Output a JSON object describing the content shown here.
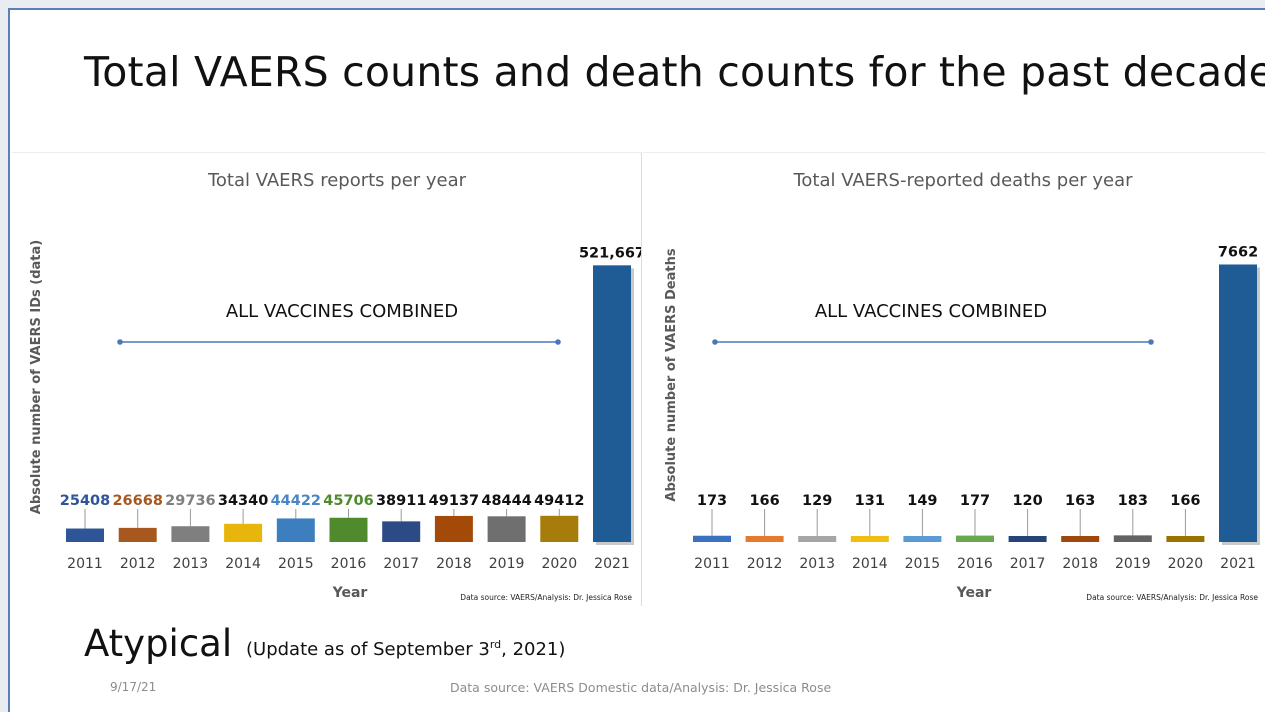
{
  "slide": {
    "title": "Total VAERS counts and death counts for the past decade",
    "footer_heading": "Atypical",
    "footer_update_prefix": "(Update as of September 3",
    "footer_update_sup": "rd",
    "footer_update_suffix": ", 2021)",
    "date": "9/17/21",
    "data_source": "Data source: VAERS Domestic data/Analysis: Dr. Jessica Rose"
  },
  "chart_data": [
    {
      "type": "bar",
      "title": "Total VAERS reports per year",
      "xlabel": "Year",
      "ylabel": "Absolute number of VAERS IDs (data)",
      "annotation": "ALL VACCINES COMBINED",
      "source_note": "Data source: VAERS/Analysis: Dr. Jessica Rose",
      "categories": [
        "2011",
        "2012",
        "2013",
        "2014",
        "2015",
        "2016",
        "2017",
        "2018",
        "2019",
        "2020",
        "2021"
      ],
      "values": [
        25408,
        26668,
        29736,
        34340,
        44422,
        45706,
        38911,
        49137,
        48444,
        49412,
        521667
      ],
      "value_labels": [
        "25408",
        "26668",
        "29736",
        "34340",
        "44422",
        "45706",
        "38911",
        "49137",
        "48444",
        "49412",
        "521,667"
      ],
      "ylim": [
        0,
        560000
      ],
      "grid": false,
      "colors": [
        "#2e5597",
        "#a6581f",
        "#7f7f7f",
        "#e8b60b",
        "#3d7ebf",
        "#4f8a2c",
        "#2c4a86",
        "#a34a08",
        "#6f6f6f",
        "#a67c0a",
        "#1f5c96"
      ],
      "label_colors": [
        "#2e5597",
        "#a6581f",
        "#7f7f7f",
        "#111111",
        "#4a86c5",
        "#4f8a2c",
        "#111111",
        "#111111",
        "#111111",
        "#111111",
        "#111111"
      ]
    },
    {
      "type": "bar",
      "title": "Total VAERS-reported deaths per year",
      "xlabel": "Year",
      "ylabel": "Absolute number of VAERS Deaths",
      "annotation": "ALL VACCINES COMBINED",
      "source_note": "Data source: VAERS/Analysis: Dr. Jessica Rose",
      "categories": [
        "2011",
        "2012",
        "2013",
        "2014",
        "2015",
        "2016",
        "2017",
        "2018",
        "2019",
        "2020",
        "2021"
      ],
      "values": [
        173,
        166,
        129,
        131,
        149,
        177,
        120,
        163,
        183,
        166,
        7662
      ],
      "value_labels": [
        "173",
        "166",
        "129",
        "131",
        "149",
        "177",
        "120",
        "163",
        "183",
        "166",
        "7662"
      ],
      "ylim": [
        0,
        8200
      ],
      "grid": false,
      "colors": [
        "#3a72c0",
        "#e57b2a",
        "#a5a5a5",
        "#f2bd11",
        "#5b9bd5",
        "#6aa84f",
        "#264478",
        "#9e480e",
        "#636363",
        "#997300",
        "#1f5c96"
      ],
      "label_colors": [
        "#111111",
        "#111111",
        "#111111",
        "#111111",
        "#111111",
        "#111111",
        "#111111",
        "#111111",
        "#111111",
        "#111111",
        "#111111"
      ]
    }
  ]
}
